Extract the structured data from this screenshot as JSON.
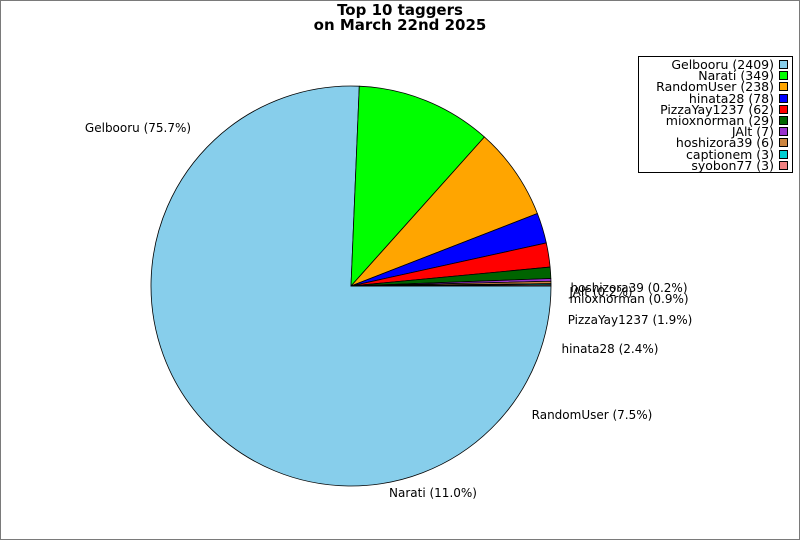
{
  "chart_data": {
    "type": "pie",
    "title_line1": "Top 10 taggers",
    "title_line2": "on March 22nd 2025",
    "slices": [
      {
        "name": "Gelbooru",
        "value": 2409,
        "color": "#87ceeb",
        "legend": "Gelbooru (2409)",
        "label": "Gelbooru (75.7%)"
      },
      {
        "name": "Narati",
        "value": 349,
        "color": "#00ff00",
        "legend": "Narati (349)",
        "label": "Narati (11.0%)"
      },
      {
        "name": "RandomUser",
        "value": 238,
        "color": "#ffa500",
        "legend": "RandomUser (238)",
        "label": "RandomUser (7.5%)"
      },
      {
        "name": "hinata28",
        "value": 78,
        "color": "#0000ff",
        "legend": "hinata28 (78)",
        "label": "hinata28 (2.4%)"
      },
      {
        "name": "PizzaYay1237",
        "value": 62,
        "color": "#ff0000",
        "legend": "PizzaYay1237 (62)",
        "label": "PizzaYay1237 (1.9%)"
      },
      {
        "name": "mioxnorman",
        "value": 29,
        "color": "#006400",
        "legend": "mioxnorman (29)",
        "label": "mioxnorman (0.9%)"
      },
      {
        "name": "JAlt",
        "value": 7,
        "color": "#9932cc",
        "legend": "JAlt (7)",
        "label": "JAlt (0.2%)"
      },
      {
        "name": "hoshizora39",
        "value": 6,
        "color": "#cd853f",
        "legend": "hoshizora39 (6)",
        "label": "hoshizora39 (0.2%)"
      },
      {
        "name": "captionem",
        "value": 3,
        "color": "#00ced1",
        "legend": "captionem (3)",
        "label": ""
      },
      {
        "name": "syobon77",
        "value": 3,
        "color": "#f08080",
        "legend": "syobon77 (3)",
        "label": ""
      }
    ],
    "legend_position": "top-right"
  }
}
